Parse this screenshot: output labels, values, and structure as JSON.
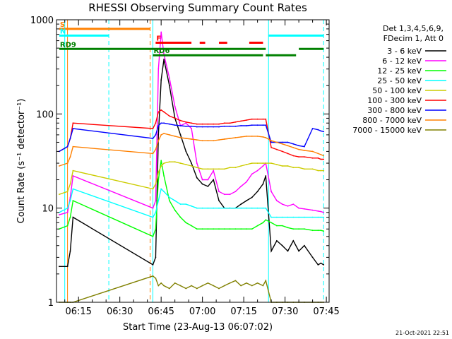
{
  "chart_data": {
    "type": "line",
    "title": "RHESSI Observing Summary Count Rates",
    "xlabel": "Start Time (23-Aug-13 06:07:02)",
    "ylabel": "Count Rate (s⁻¹ detector⁻¹)",
    "y_scale": "log",
    "ylim": [
      1,
      1000
    ],
    "xlim": [
      "06:07",
      "07:46"
    ],
    "x_ticks": [
      "06:15",
      "06:30",
      "06:45",
      "07:00",
      "07:15",
      "07:30",
      "07:45"
    ],
    "y_ticks": [
      "1",
      "10",
      "100",
      "1000"
    ],
    "grid": false,
    "legend_position": "right",
    "legend_header": [
      "Det 1,3,4,5,6,9,",
      "FDecim 1, Att 0"
    ],
    "timestamp": "21-Oct-2021 22:51",
    "series": [
      {
        "name": "3 - 6 keV",
        "color": "#000000",
        "x": [
          "06:08",
          "06:11",
          "06:12",
          "06:13",
          "06:42",
          "06:43",
          "06:44",
          "06:45",
          "06:46",
          "06:48",
          "06:50",
          "06:52",
          "06:54",
          "06:56",
          "06:58",
          "07:00",
          "07:02",
          "07:04",
          "07:06",
          "07:08",
          "07:10",
          "07:12",
          "07:14",
          "07:16",
          "07:18",
          "07:20",
          "07:22",
          "07:23",
          "07:25",
          "07:27",
          "07:29",
          "07:31",
          "07:33",
          "07:35",
          "07:37",
          "07:40",
          "07:42",
          "07:43",
          "07:44"
        ],
        "y": [
          2.4,
          2.4,
          3.5,
          8,
          2.5,
          3,
          60,
          230,
          380,
          200,
          90,
          60,
          40,
          30,
          21,
          18,
          17,
          20,
          12,
          10,
          10,
          10,
          11,
          12,
          13,
          15,
          18,
          22,
          3.5,
          4.5,
          4,
          3.5,
          4.5,
          3.5,
          4,
          3,
          2.5,
          2.6,
          2.5
        ]
      },
      {
        "name": "6 - 12 keV",
        "color": "#ff00ff",
        "x": [
          "06:08",
          "06:11",
          "06:12",
          "06:13",
          "06:42",
          "06:43",
          "06:44",
          "06:45",
          "06:46",
          "06:48",
          "06:50",
          "06:52",
          "06:54",
          "06:56",
          "06:58",
          "07:00",
          "07:02",
          "07:04",
          "07:06",
          "07:08",
          "07:10",
          "07:12",
          "07:14",
          "07:16",
          "07:18",
          "07:20",
          "07:22",
          "07:23",
          "07:25",
          "07:27",
          "07:29",
          "07:31",
          "07:33",
          "07:35",
          "07:37",
          "07:40",
          "07:42",
          "07:43",
          "07:44"
        ],
        "y": [
          8.5,
          9,
          13,
          22,
          10,
          12,
          300,
          740,
          430,
          240,
          120,
          75,
          80,
          70,
          30,
          20,
          20,
          25,
          15,
          14,
          14,
          15,
          17,
          19,
          23,
          25,
          28,
          30,
          15,
          12,
          11,
          10.5,
          11,
          10,
          9.8,
          9.5,
          9.3,
          9.2,
          9
        ]
      },
      {
        "name": "12 - 25 keV",
        "color": "#00ff00",
        "x": [
          "06:08",
          "06:11",
          "06:12",
          "06:13",
          "06:42",
          "06:43",
          "06:44",
          "06:45",
          "06:46",
          "06:48",
          "06:50",
          "06:52",
          "06:54",
          "06:56",
          "06:58",
          "07:00",
          "07:02",
          "07:04",
          "07:06",
          "07:08",
          "07:10",
          "07:12",
          "07:14",
          "07:16",
          "07:18",
          "07:20",
          "07:22",
          "07:23",
          "07:25",
          "07:27",
          "07:29",
          "07:31",
          "07:33",
          "07:35",
          "07:37",
          "07:40",
          "07:42",
          "07:43",
          "07:44"
        ],
        "y": [
          6,
          6.5,
          8,
          12,
          5,
          6,
          20,
          32,
          22,
          12,
          9.5,
          8,
          7,
          6.5,
          6,
          6,
          6,
          6,
          6,
          6,
          6,
          6,
          6,
          6,
          6,
          6.5,
          7,
          7.5,
          7,
          6.5,
          6.5,
          6.2,
          6,
          6,
          6,
          5.8,
          5.8,
          5.8,
          5.7
        ]
      },
      {
        "name": "25 - 50 keV",
        "color": "#00ffff",
        "x": [
          "06:08",
          "06:11",
          "06:12",
          "06:13",
          "06:42",
          "06:43",
          "06:44",
          "06:45",
          "06:46",
          "06:48",
          "06:50",
          "06:52",
          "06:54",
          "06:56",
          "06:58",
          "07:00",
          "07:02",
          "07:04",
          "07:06",
          "07:08",
          "07:10",
          "07:12",
          "07:14",
          "07:16",
          "07:18",
          "07:20",
          "07:22",
          "07:23",
          "07:25",
          "07:27",
          "07:29",
          "07:31",
          "07:33",
          "07:35",
          "07:37",
          "07:40",
          "07:42",
          "07:43",
          "07:44"
        ],
        "y": [
          9,
          10,
          12,
          16,
          8,
          9,
          12,
          16,
          15,
          13,
          12,
          11,
          11,
          10.5,
          10,
          10,
          10,
          10,
          10,
          10,
          10,
          10,
          10,
          10,
          10,
          10,
          10,
          10,
          8,
          8,
          8,
          8,
          8,
          8,
          8,
          8,
          8,
          8,
          8
        ]
      },
      {
        "name": "50 - 100 keV",
        "color": "#cccc00",
        "x": [
          "06:08",
          "06:11",
          "06:12",
          "06:13",
          "06:42",
          "06:43",
          "06:44",
          "06:45",
          "06:46",
          "06:48",
          "06:50",
          "06:52",
          "06:54",
          "06:56",
          "06:58",
          "07:00",
          "07:02",
          "07:04",
          "07:06",
          "07:08",
          "07:10",
          "07:12",
          "07:14",
          "07:16",
          "07:18",
          "07:20",
          "07:22",
          "07:23",
          "07:25",
          "07:27",
          "07:29",
          "07:31",
          "07:33",
          "07:35",
          "07:37",
          "07:40",
          "07:42",
          "07:43",
          "07:44"
        ],
        "y": [
          14,
          15,
          18,
          25,
          16,
          18,
          24,
          28,
          30,
          31,
          31,
          30,
          29,
          28,
          27,
          26,
          26,
          26,
          26,
          26,
          27,
          27,
          28,
          29,
          30,
          30,
          30,
          30,
          30,
          29,
          28,
          28,
          27,
          27,
          26,
          26,
          25,
          25,
          25
        ]
      },
      {
        "name": "100 - 300 keV",
        "color": "#ff0000",
        "x": [
          "06:08",
          "06:11",
          "06:12",
          "06:13",
          "06:42",
          "06:43",
          "06:44",
          "06:45",
          "06:46",
          "06:48",
          "06:50",
          "06:52",
          "06:54",
          "06:56",
          "06:58",
          "07:00",
          "07:02",
          "07:04",
          "07:06",
          "07:08",
          "07:10",
          "07:12",
          "07:14",
          "07:16",
          "07:18",
          "07:20",
          "07:22",
          "07:23",
          "07:25",
          "07:27",
          "07:29",
          "07:31",
          "07:33",
          "07:35",
          "07:37",
          "07:40",
          "07:42",
          "07:43",
          "07:44"
        ],
        "y": [
          40,
          45,
          55,
          80,
          70,
          80,
          105,
          110,
          105,
          95,
          90,
          85,
          82,
          80,
          78,
          78,
          78,
          78,
          78,
          80,
          80,
          82,
          84,
          86,
          88,
          88,
          88,
          88,
          44,
          42,
          40,
          38,
          36,
          35,
          35,
          34,
          34,
          33,
          33
        ]
      },
      {
        "name": "300 - 800 keV",
        "color": "#0000ff",
        "x": [
          "06:08",
          "06:11",
          "06:12",
          "06:13",
          "06:42",
          "06:43",
          "06:44",
          "06:45",
          "06:46",
          "06:48",
          "06:50",
          "06:52",
          "06:54",
          "06:56",
          "06:58",
          "07:00",
          "07:02",
          "07:04",
          "07:06",
          "07:08",
          "07:10",
          "07:12",
          "07:14",
          "07:16",
          "07:18",
          "07:20",
          "07:22",
          "07:23",
          "07:25",
          "07:27",
          "07:29",
          "07:31",
          "07:33",
          "07:35",
          "07:37",
          "07:40",
          "07:42",
          "07:43",
          "07:44"
        ],
        "y": [
          40,
          45,
          55,
          70,
          55,
          60,
          75,
          80,
          80,
          78,
          76,
          75,
          74,
          74,
          73,
          73,
          73,
          73,
          73,
          74,
          74,
          74,
          75,
          75,
          76,
          76,
          76,
          76,
          50,
          50,
          50,
          50,
          48,
          46,
          45,
          70,
          68,
          66,
          65
        ]
      },
      {
        "name": "800 - 7000 keV",
        "color": "#ff8000",
        "x": [
          "06:08",
          "06:11",
          "06:12",
          "06:13",
          "06:42",
          "06:43",
          "06:44",
          "06:45",
          "06:46",
          "06:48",
          "06:50",
          "06:52",
          "06:54",
          "06:56",
          "06:58",
          "07:00",
          "07:02",
          "07:04",
          "07:06",
          "07:08",
          "07:10",
          "07:12",
          "07:14",
          "07:16",
          "07:18",
          "07:20",
          "07:22",
          "07:23",
          "07:25",
          "07:27",
          "07:29",
          "07:31",
          "07:33",
          "07:35",
          "07:37",
          "07:40",
          "07:42",
          "07:43",
          "07:44"
        ],
        "y": [
          28,
          30,
          35,
          45,
          38,
          42,
          52,
          60,
          62,
          60,
          58,
          56,
          55,
          54,
          53,
          52,
          52,
          52,
          53,
          54,
          55,
          56,
          57,
          58,
          58,
          58,
          57,
          56,
          52,
          50,
          48,
          46,
          44,
          42,
          41,
          40,
          38,
          37,
          36
        ]
      },
      {
        "name": "7000 - 15000 keV",
        "color": "#808000",
        "x": [
          "06:08",
          "06:11",
          "06:12",
          "06:13",
          "06:42",
          "06:43",
          "06:44",
          "06:45",
          "06:46",
          "06:48",
          "06:50",
          "06:52",
          "06:54",
          "06:56",
          "06:58",
          "07:00",
          "07:02",
          "07:04",
          "07:06",
          "07:08",
          "07:10",
          "07:12",
          "07:14",
          "07:16",
          "07:18",
          "07:20",
          "07:22",
          "07:23",
          "07:25",
          "07:27",
          "07:29",
          "07:31",
          "07:33",
          "07:35",
          "07:37",
          "07:40",
          "07:42",
          "07:43",
          "07:44"
        ],
        "y": [
          1,
          1,
          1,
          1,
          1.9,
          1.8,
          1.5,
          1.6,
          1.5,
          1.4,
          1.6,
          1.5,
          1.4,
          1.5,
          1.4,
          1.5,
          1.6,
          1.5,
          1.4,
          1.5,
          1.6,
          1.7,
          1.5,
          1.6,
          1.5,
          1.6,
          1.5,
          1.7,
          1,
          1,
          1,
          1,
          1,
          1,
          1,
          1,
          1,
          1,
          1
        ]
      }
    ],
    "vertical_markers": [
      {
        "time": "06:10",
        "color": "#00ffff",
        "style": "solid"
      },
      {
        "time": "06:11",
        "color": "#ff8000",
        "style": "solid"
      },
      {
        "time": "06:26",
        "color": "#00ffff",
        "style": "dashed"
      },
      {
        "time": "06:41",
        "color": "#ff8000",
        "style": "dashed"
      },
      {
        "time": "06:42",
        "color": "#00ffff",
        "style": "solid"
      },
      {
        "time": "07:24",
        "color": "#00ffff",
        "style": "solid"
      },
      {
        "time": "07:44",
        "color": "#00ffff",
        "style": "dashed"
      }
    ],
    "flag_bars": [
      {
        "label": "S",
        "color": "#ff8000",
        "start": "06:08",
        "end": "06:41",
        "level": 800
      },
      {
        "label": "N",
        "color": "#00ffff",
        "start": "06:08",
        "end": "06:26",
        "level": 680
      },
      {
        "label": "",
        "color": "#00ffff",
        "start": "07:24",
        "end": "07:44",
        "level": 680
      },
      {
        "label": "F",
        "color": "#ff0000",
        "start": "06:43",
        "end": "06:56",
        "level": 570
      },
      {
        "label": "",
        "color": "#ff0000",
        "start": "06:59",
        "end": "07:01",
        "level": 570
      },
      {
        "label": "",
        "color": "#ff0000",
        "start": "07:06",
        "end": "07:09",
        "level": 570
      },
      {
        "label": "",
        "color": "#ff0000",
        "start": "07:17",
        "end": "07:22",
        "level": 570
      },
      {
        "label": "RD9",
        "color": "#008000",
        "start": "06:08",
        "end": "07:23",
        "level": 490
      },
      {
        "label": "",
        "color": "#008000",
        "start": "07:35",
        "end": "07:44",
        "level": 490
      },
      {
        "label": "RD6",
        "color": "#008000",
        "start": "06:42",
        "end": "07:22",
        "level": 420
      },
      {
        "label": "",
        "color": "#008000",
        "start": "07:23",
        "end": "07:34",
        "level": 420
      }
    ]
  }
}
